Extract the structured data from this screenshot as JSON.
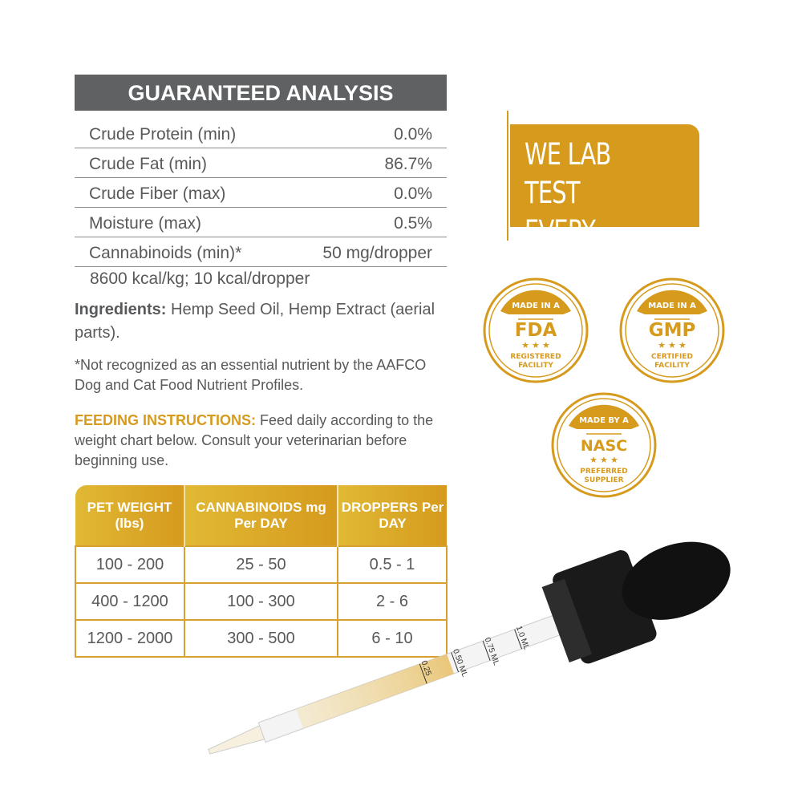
{
  "analysis": {
    "title": "GUARANTEED ANALYSIS",
    "rows": [
      {
        "label": "Crude Protein (min)",
        "value": "0.0%"
      },
      {
        "label": "Crude Fat (min)",
        "value": "86.7%"
      },
      {
        "label": "Crude Fiber (max)",
        "value": "0.0%"
      },
      {
        "label": "Moisture (max)",
        "value": "0.5%"
      },
      {
        "label": "Cannabinoids (min)*",
        "value": "50 mg/dropper"
      }
    ],
    "kcal": "8600 kcal/kg; 10 kcal/dropper"
  },
  "ingredients": {
    "label": "Ingredients:",
    "text": " Hemp Seed Oil, Hemp Extract (aerial parts)."
  },
  "footnote": "*Not recognized as an essential nutrient by the AAFCO Dog and Cat Food Nutrient Profiles.",
  "feeding": {
    "label": "FEEDING INSTRUCTIONS:",
    "text": " Feed daily according to the weight chart below. Consult your veterinarian before beginning use."
  },
  "table": {
    "headers": [
      "PET WEIGHT (lbs)",
      "CANNABINOIDS mg Per DAY",
      "DROPPERS Per DAY"
    ],
    "rows": [
      [
        "100 - 200",
        "25 - 50",
        "0.5 - 1"
      ],
      [
        "400 - 1200",
        "100 - 300",
        "2 - 6"
      ],
      [
        "1200 - 2000",
        "300 - 500",
        "6 - 10"
      ]
    ]
  },
  "lab": {
    "line1": "WE LAB TEST",
    "line2": "EVERY BATCH."
  },
  "badges": [
    {
      "top": "MADE IN A",
      "center": "FDA",
      "bottom": "REGISTERED FACILITY"
    },
    {
      "top": "MADE IN A",
      "center": "GMP",
      "bottom": "CERTIFIED FACILITY"
    },
    {
      "top": "MADE BY A",
      "center": "NASC",
      "bottom": "PREFERRED SUPPLIER"
    }
  ],
  "dropper": {
    "marks": [
      "1.0 ML",
      "0.75 ML",
      "0.50 ML",
      "0.25"
    ]
  },
  "colors": {
    "gold": "#d69a1d",
    "header_gray": "#606163",
    "text": "#58595b"
  }
}
